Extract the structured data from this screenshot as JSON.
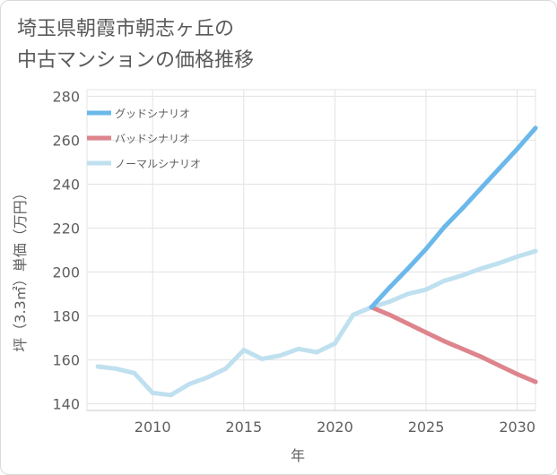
{
  "title_lines": [
    "埼玉県朝霞市朝志ヶ丘の",
    "中古マンションの価格推移"
  ],
  "chart_data": {
    "type": "line",
    "title": "埼玉県朝霞市朝志ヶ丘の中古マンションの価格推移",
    "xlabel": "年",
    "ylabel": "坪（3.3㎡）単価（万円）",
    "xlim": [
      2006.4,
      2031
    ],
    "ylim": [
      137,
      283
    ],
    "xticks": [
      2010,
      2015,
      2020,
      2025,
      2030
    ],
    "yticks": [
      140,
      160,
      180,
      200,
      220,
      240,
      260,
      280
    ],
    "grid": true,
    "legend_position": "top-left",
    "series": [
      {
        "name": "グッドシナリオ",
        "color": "#6bb8ea",
        "x": [
          2022,
          2023,
          2024,
          2025,
          2026,
          2027,
          2028,
          2029,
          2030,
          2031
        ],
        "values": [
          184,
          193,
          201.5,
          210.5,
          220.5,
          229,
          238,
          247,
          256,
          265.5
        ]
      },
      {
        "name": "バッドシナリオ",
        "color": "#dd848d",
        "x": [
          2022,
          2023,
          2024,
          2025,
          2026,
          2027,
          2028,
          2029,
          2030,
          2031
        ],
        "values": [
          184,
          180.5,
          176.5,
          172.5,
          168.5,
          165,
          161.5,
          157.5,
          153.5,
          150
        ]
      },
      {
        "name": "ノーマルシナリオ",
        "color": "#bfe0ef",
        "x": [
          2007,
          2008,
          2009,
          2010,
          2011,
          2012,
          2013,
          2014,
          2015,
          2016,
          2017,
          2018,
          2019,
          2020,
          2021,
          2022,
          2023,
          2024,
          2025,
          2026,
          2027,
          2028,
          2029,
          2030,
          2031
        ],
        "values": [
          157,
          156,
          154,
          145,
          144,
          149,
          152,
          156,
          164.5,
          160.5,
          162,
          165,
          163.5,
          167.5,
          180.5,
          184,
          186.5,
          190,
          192,
          196,
          198.5,
          201.5,
          204,
          207,
          209.5
        ]
      }
    ]
  }
}
